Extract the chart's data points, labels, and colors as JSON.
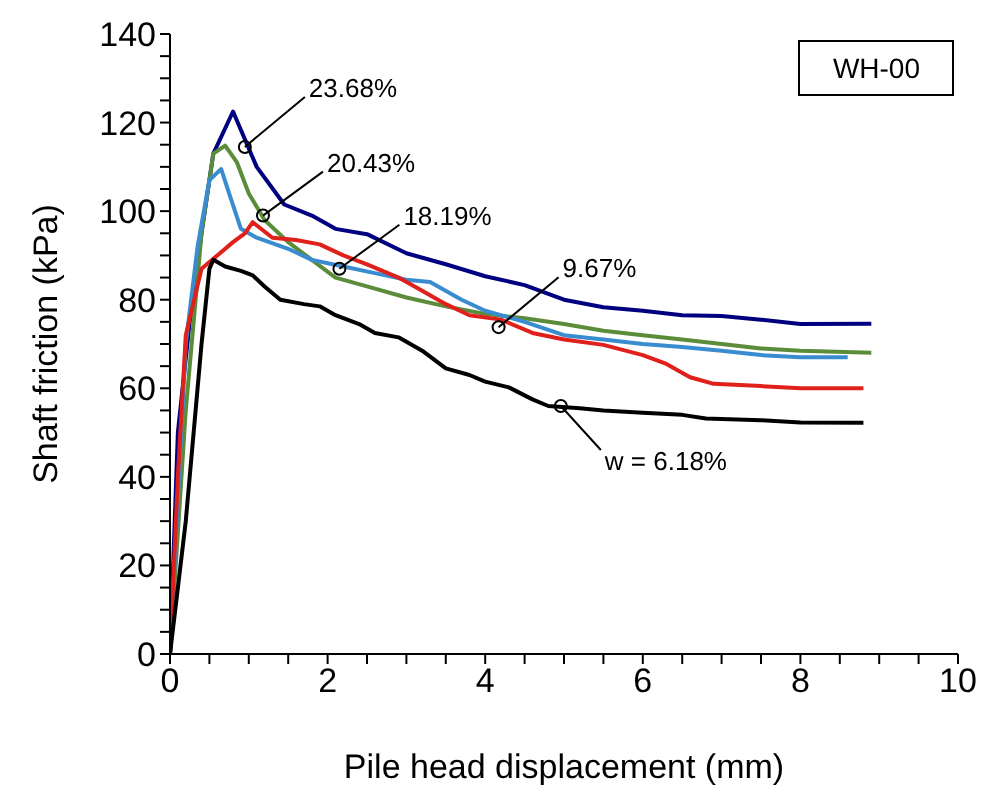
{
  "chart_data": {
    "type": "line",
    "xlabel": "Pile head displacement (mm)",
    "ylabel": "Shaft friction (kPa)",
    "xlim": [
      0,
      10
    ],
    "ylim": [
      0,
      140
    ],
    "xticks": [
      0,
      {
        "value": 0.5,
        "label": null
      },
      {
        "value": 1,
        "label": null
      },
      {
        "value": 1.5,
        "label": null
      },
      2,
      {
        "value": 2.5,
        "label": null
      },
      {
        "value": 3,
        "label": null
      },
      {
        "value": 3.5,
        "label": null
      },
      4,
      {
        "value": 4.5,
        "label": null
      },
      {
        "value": 5,
        "label": null
      },
      {
        "value": 5.5,
        "label": null
      },
      6,
      {
        "value": 6.5,
        "label": null
      },
      {
        "value": 7,
        "label": null
      },
      {
        "value": 7.5,
        "label": null
      },
      8,
      {
        "value": 8.5,
        "label": null
      },
      {
        "value": 9,
        "label": null
      },
      {
        "value": 9.5,
        "label": null
      },
      10
    ],
    "yticks": [
      0,
      {
        "value": 5,
        "label": null
      },
      {
        "value": 10,
        "label": null
      },
      {
        "value": 15,
        "label": null
      },
      20,
      {
        "value": 25,
        "label": null
      },
      {
        "value": 30,
        "label": null
      },
      {
        "value": 35,
        "label": null
      },
      40,
      {
        "value": 45,
        "label": null
      },
      {
        "value": 50,
        "label": null
      },
      {
        "value": 55,
        "label": null
      },
      60,
      {
        "value": 65,
        "label": null
      },
      {
        "value": 70,
        "label": null
      },
      {
        "value": 75,
        "label": null
      },
      80,
      {
        "value": 85,
        "label": null
      },
      {
        "value": 90,
        "label": null
      },
      {
        "value": 95,
        "label": null
      },
      100,
      {
        "value": 105,
        "label": null
      },
      {
        "value": 110,
        "label": null
      },
      {
        "value": 115,
        "label": null
      },
      120,
      {
        "value": 125,
        "label": null
      },
      {
        "value": 130,
        "label": null
      },
      {
        "value": 135,
        "label": null
      },
      140
    ],
    "grid": false,
    "legend": false,
    "marker": "none",
    "line_style": "solid",
    "annotations": [
      "WH-00",
      {
        "text": "23.68%",
        "x": 0.95,
        "y": 114.5
      },
      {
        "text": "20.43%",
        "x": 1.18,
        "y": 99
      },
      {
        "text": "18.19%",
        "x": 2.15,
        "y": 87
      },
      {
        "text": "9.67%",
        "x": 4.17,
        "y": 73.8
      },
      {
        "text": "w = 6.18%",
        "x": 4.96,
        "y": 56
      }
    ],
    "series": [
      {
        "color": "#000080",
        "x": [
          0,
          0.1,
          0.25,
          0.4,
          0.55,
          0.8,
          1.1,
          1.45,
          1.8,
          2.1,
          2.5,
          3.0,
          3.5,
          4.0,
          4.5,
          5.0,
          5.5,
          6.0,
          6.5,
          7.0,
          7.5,
          8.0,
          8.9
        ],
        "values": [
          0,
          50,
          75,
          95,
          113,
          122.5,
          110,
          101.5,
          99,
          96,
          94.8,
          90.5,
          88,
          85.3,
          83.3,
          80,
          78.3,
          77.5,
          76.5,
          76.3,
          75.5,
          74.5,
          74.6
        ]
      },
      {
        "color": "#5b8c3a",
        "x": [
          0,
          0.2,
          0.4,
          0.55,
          0.7,
          0.85,
          1.0,
          1.2,
          1.5,
          1.8,
          2.1,
          2.5,
          3.0,
          3.5,
          4.0,
          4.5,
          5.0,
          5.5,
          6.0,
          6.5,
          7.0,
          7.5,
          8.0,
          8.9
        ],
        "values": [
          0,
          55,
          95,
          113,
          114.8,
          111,
          104,
          98,
          93,
          89,
          85,
          83,
          80.5,
          78.5,
          76.8,
          75.8,
          74.5,
          73,
          72,
          71,
          70,
          69,
          68.5,
          68
        ]
      },
      {
        "color": "#3a8cd0",
        "x": [
          0,
          0.2,
          0.35,
          0.5,
          0.65,
          0.75,
          0.9,
          1.1,
          1.5,
          1.8,
          2.2,
          2.6,
          3.0,
          3.3,
          3.7,
          4.0,
          4.5,
          5.0,
          5.5,
          6.0,
          6.5,
          7.0,
          7.5,
          8.0,
          8.6
        ],
        "values": [
          0,
          70,
          92,
          107,
          109.5,
          104,
          96,
          94,
          91.5,
          89,
          87.5,
          86,
          84.5,
          84,
          80,
          77.5,
          75,
          72,
          71,
          70,
          69.3,
          68.5,
          67.5,
          67,
          67
        ]
      },
      {
        "color": "#e0201b",
        "x": [
          0,
          0.1,
          0.2,
          0.4,
          0.6,
          0.8,
          0.95,
          1.05,
          1.3,
          1.6,
          1.9,
          2.2,
          2.5,
          2.9,
          3.2,
          3.5,
          3.8,
          4.2,
          4.6,
          5.0,
          5.5,
          6.0,
          6.3,
          6.6,
          6.9,
          7.5,
          8.0,
          8.8
        ],
        "values": [
          0,
          40,
          72,
          87,
          90,
          93,
          95,
          97.5,
          94,
          93.5,
          92.5,
          90,
          88,
          85,
          82,
          79,
          76.5,
          75.5,
          72.5,
          71,
          69.8,
          67.5,
          65.5,
          62.5,
          61,
          60.5,
          60,
          60
        ]
      },
      {
        "color": "#000000",
        "x": [
          0,
          0.2,
          0.4,
          0.5,
          0.55,
          0.7,
          0.9,
          1.05,
          1.2,
          1.4,
          1.7,
          1.9,
          2.1,
          2.4,
          2.6,
          2.9,
          3.2,
          3.5,
          3.8,
          4.0,
          4.3,
          4.6,
          4.8,
          5.2,
          5.5,
          6.0,
          6.5,
          6.8,
          7.5,
          8.0,
          8.8
        ],
        "values": [
          0,
          30,
          70,
          87,
          89,
          87.5,
          86.5,
          85.5,
          83,
          80,
          79,
          78.5,
          76.5,
          74.5,
          72.5,
          71.5,
          68.5,
          64.5,
          63,
          61.5,
          60.2,
          57.5,
          56,
          55.5,
          55,
          54.5,
          54,
          53.2,
          52.8,
          52.3,
          52.2
        ]
      }
    ]
  }
}
